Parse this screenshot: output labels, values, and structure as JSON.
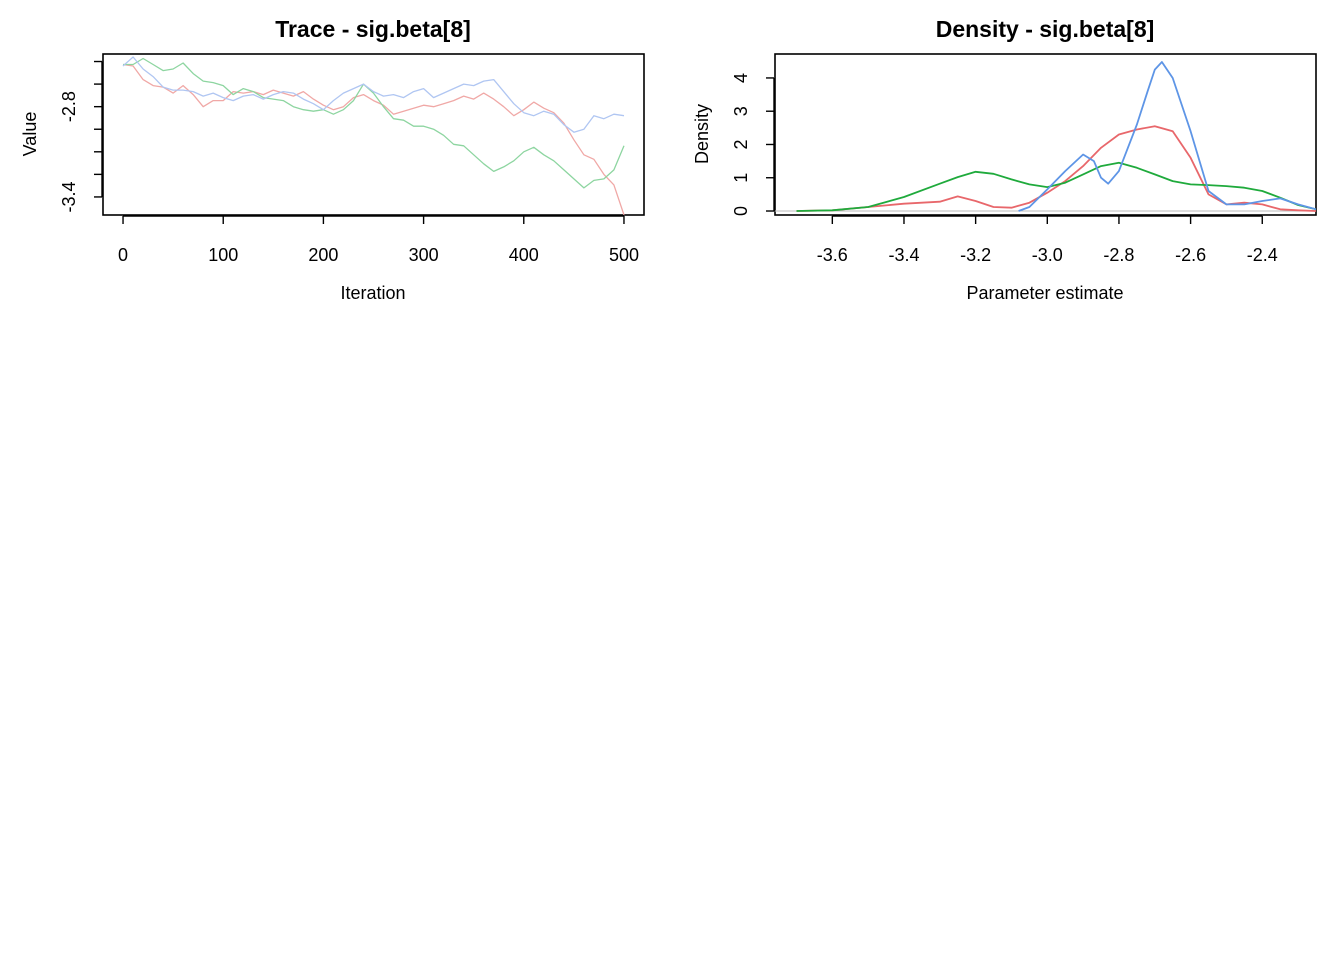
{
  "colors": {
    "chain1": "#E8676B",
    "chain2": "#1FAA3C",
    "chain3": "#5E95E6"
  },
  "chart_data": [
    {
      "type": "line",
      "title": "Trace - sig.beta[8]",
      "xlabel": "Iteration",
      "ylabel": "Value",
      "xlim": [
        -20,
        520
      ],
      "ylim": [
        -3.52,
        -2.45
      ],
      "xticks": [
        0,
        100,
        200,
        300,
        400,
        500
      ],
      "yticks": [
        -3.4,
        -3.25,
        -3.1,
        -2.95,
        -2.8,
        -2.65,
        -2.5
      ],
      "ytick_labels": {
        "-3.4": "-3.4",
        "-2.8": "-2.8"
      },
      "series": [
        {
          "color": "#F0A8A6",
          "values": [
            [
              0,
              -2.52
            ],
            [
              10,
              -2.53
            ],
            [
              20,
              -2.62
            ],
            [
              30,
              -2.66
            ],
            [
              40,
              -2.67
            ],
            [
              50,
              -2.71
            ],
            [
              60,
              -2.66
            ],
            [
              70,
              -2.72
            ],
            [
              80,
              -2.8
            ],
            [
              90,
              -2.76
            ],
            [
              100,
              -2.76
            ],
            [
              110,
              -2.7
            ],
            [
              120,
              -2.71
            ],
            [
              130,
              -2.7
            ],
            [
              140,
              -2.72
            ],
            [
              150,
              -2.69
            ],
            [
              160,
              -2.71
            ],
            [
              170,
              -2.73
            ],
            [
              180,
              -2.7
            ],
            [
              190,
              -2.75
            ],
            [
              200,
              -2.79
            ],
            [
              210,
              -2.82
            ],
            [
              220,
              -2.8
            ],
            [
              230,
              -2.74
            ],
            [
              240,
              -2.72
            ],
            [
              250,
              -2.76
            ],
            [
              260,
              -2.79
            ],
            [
              270,
              -2.85
            ],
            [
              280,
              -2.83
            ],
            [
              290,
              -2.81
            ],
            [
              300,
              -2.79
            ],
            [
              310,
              -2.8
            ],
            [
              320,
              -2.78
            ],
            [
              330,
              -2.76
            ],
            [
              340,
              -2.73
            ],
            [
              350,
              -2.75
            ],
            [
              360,
              -2.71
            ],
            [
              370,
              -2.75
            ],
            [
              380,
              -2.8
            ],
            [
              390,
              -2.86
            ],
            [
              400,
              -2.82
            ],
            [
              410,
              -2.77
            ],
            [
              420,
              -2.81
            ],
            [
              430,
              -2.84
            ],
            [
              440,
              -2.91
            ],
            [
              450,
              -3.02
            ],
            [
              460,
              -3.12
            ],
            [
              470,
              -3.15
            ],
            [
              480,
              -3.25
            ],
            [
              490,
              -3.32
            ],
            [
              500,
              -3.52
            ]
          ]
        },
        {
          "color": "#8DD5A0",
          "values": [
            [
              0,
              -2.52
            ],
            [
              10,
              -2.52
            ],
            [
              20,
              -2.48
            ],
            [
              30,
              -2.52
            ],
            [
              40,
              -2.56
            ],
            [
              50,
              -2.55
            ],
            [
              60,
              -2.51
            ],
            [
              70,
              -2.58
            ],
            [
              80,
              -2.63
            ],
            [
              90,
              -2.64
            ],
            [
              100,
              -2.66
            ],
            [
              110,
              -2.72
            ],
            [
              120,
              -2.68
            ],
            [
              130,
              -2.7
            ],
            [
              140,
              -2.74
            ],
            [
              150,
              -2.75
            ],
            [
              160,
              -2.76
            ],
            [
              170,
              -2.8
            ],
            [
              180,
              -2.82
            ],
            [
              190,
              -2.83
            ],
            [
              200,
              -2.82
            ],
            [
              210,
              -2.85
            ],
            [
              220,
              -2.82
            ],
            [
              230,
              -2.76
            ],
            [
              240,
              -2.65
            ],
            [
              250,
              -2.71
            ],
            [
              260,
              -2.8
            ],
            [
              270,
              -2.88
            ],
            [
              280,
              -2.89
            ],
            [
              290,
              -2.93
            ],
            [
              300,
              -2.93
            ],
            [
              310,
              -2.95
            ],
            [
              320,
              -2.99
            ],
            [
              330,
              -3.05
            ],
            [
              340,
              -3.06
            ],
            [
              350,
              -3.12
            ],
            [
              360,
              -3.18
            ],
            [
              370,
              -3.23
            ],
            [
              380,
              -3.2
            ],
            [
              390,
              -3.16
            ],
            [
              400,
              -3.1
            ],
            [
              410,
              -3.07
            ],
            [
              420,
              -3.12
            ],
            [
              430,
              -3.16
            ],
            [
              440,
              -3.22
            ],
            [
              450,
              -3.28
            ],
            [
              460,
              -3.34
            ],
            [
              470,
              -3.29
            ],
            [
              480,
              -3.28
            ],
            [
              490,
              -3.22
            ],
            [
              500,
              -3.06
            ]
          ]
        },
        {
          "color": "#B0C6F2",
          "values": [
            [
              0,
              -2.53
            ],
            [
              10,
              -2.47
            ],
            [
              20,
              -2.55
            ],
            [
              30,
              -2.6
            ],
            [
              40,
              -2.67
            ],
            [
              50,
              -2.69
            ],
            [
              60,
              -2.69
            ],
            [
              70,
              -2.7
            ],
            [
              80,
              -2.73
            ],
            [
              90,
              -2.71
            ],
            [
              100,
              -2.74
            ],
            [
              110,
              -2.76
            ],
            [
              120,
              -2.73
            ],
            [
              130,
              -2.72
            ],
            [
              140,
              -2.75
            ],
            [
              150,
              -2.72
            ],
            [
              160,
              -2.7
            ],
            [
              170,
              -2.71
            ],
            [
              180,
              -2.75
            ],
            [
              190,
              -2.78
            ],
            [
              200,
              -2.82
            ],
            [
              210,
              -2.76
            ],
            [
              220,
              -2.71
            ],
            [
              230,
              -2.68
            ],
            [
              240,
              -2.65
            ],
            [
              250,
              -2.7
            ],
            [
              260,
              -2.73
            ],
            [
              270,
              -2.72
            ],
            [
              280,
              -2.74
            ],
            [
              290,
              -2.7
            ],
            [
              300,
              -2.68
            ],
            [
              310,
              -2.74
            ],
            [
              320,
              -2.71
            ],
            [
              330,
              -2.68
            ],
            [
              340,
              -2.65
            ],
            [
              350,
              -2.66
            ],
            [
              360,
              -2.63
            ],
            [
              370,
              -2.62
            ],
            [
              380,
              -2.7
            ],
            [
              390,
              -2.78
            ],
            [
              400,
              -2.84
            ],
            [
              410,
              -2.86
            ],
            [
              420,
              -2.83
            ],
            [
              430,
              -2.85
            ],
            [
              440,
              -2.92
            ],
            [
              450,
              -2.97
            ],
            [
              460,
              -2.95
            ],
            [
              470,
              -2.86
            ],
            [
              480,
              -2.88
            ],
            [
              490,
              -2.85
            ],
            [
              500,
              -2.86
            ]
          ]
        }
      ]
    },
    {
      "type": "line",
      "title": "Density - sig.beta[8]",
      "xlabel": "Parameter estimate",
      "ylabel": "Density",
      "xlim": [
        -3.76,
        -2.25
      ],
      "ylim": [
        -0.12,
        4.72
      ],
      "xticks": [
        -3.6,
        -3.4,
        -3.2,
        -3.0,
        -2.8,
        -2.6,
        -2.4
      ],
      "xtick_labels": [
        "-3.6",
        "-3.4",
        "-3.2",
        "-3.0",
        "-2.8",
        "-2.6",
        "-2.4"
      ],
      "yticks": [
        0,
        1,
        2,
        3,
        4
      ],
      "ytick_labels": [
        "0",
        "1",
        "2",
        "3",
        "4"
      ],
      "series": [
        {
          "color": "#E8676B",
          "values": [
            [
              -3.7,
              0
            ],
            [
              -3.6,
              0.02
            ],
            [
              -3.5,
              0.12
            ],
            [
              -3.4,
              0.22
            ],
            [
              -3.3,
              0.28
            ],
            [
              -3.25,
              0.44
            ],
            [
              -3.2,
              0.3
            ],
            [
              -3.15,
              0.12
            ],
            [
              -3.1,
              0.1
            ],
            [
              -3.05,
              0.25
            ],
            [
              -3.0,
              0.55
            ],
            [
              -2.95,
              0.9
            ],
            [
              -2.9,
              1.35
            ],
            [
              -2.85,
              1.9
            ],
            [
              -2.8,
              2.3
            ],
            [
              -2.75,
              2.45
            ],
            [
              -2.7,
              2.55
            ],
            [
              -2.65,
              2.4
            ],
            [
              -2.6,
              1.6
            ],
            [
              -2.55,
              0.5
            ],
            [
              -2.5,
              0.2
            ],
            [
              -2.45,
              0.25
            ],
            [
              -2.4,
              0.2
            ],
            [
              -2.35,
              0.05
            ],
            [
              -2.3,
              0.02
            ],
            [
              -2.25,
              0
            ]
          ]
        },
        {
          "color": "#1FAA3C",
          "values": [
            [
              -3.7,
              0
            ],
            [
              -3.6,
              0.02
            ],
            [
              -3.5,
              0.12
            ],
            [
              -3.4,
              0.42
            ],
            [
              -3.3,
              0.82
            ],
            [
              -3.25,
              1.02
            ],
            [
              -3.2,
              1.18
            ],
            [
              -3.15,
              1.12
            ],
            [
              -3.1,
              0.95
            ],
            [
              -3.05,
              0.8
            ],
            [
              -3.0,
              0.72
            ],
            [
              -2.95,
              0.85
            ],
            [
              -2.9,
              1.1
            ],
            [
              -2.85,
              1.35
            ],
            [
              -2.8,
              1.45
            ],
            [
              -2.75,
              1.3
            ],
            [
              -2.7,
              1.1
            ],
            [
              -2.65,
              0.9
            ],
            [
              -2.6,
              0.8
            ],
            [
              -2.55,
              0.78
            ],
            [
              -2.5,
              0.75
            ],
            [
              -2.45,
              0.7
            ],
            [
              -2.4,
              0.6
            ],
            [
              -2.35,
              0.4
            ],
            [
              -2.3,
              0.18
            ],
            [
              -2.25,
              0.05
            ]
          ]
        },
        {
          "color": "#5E95E6",
          "values": [
            [
              -3.08,
              0
            ],
            [
              -3.05,
              0.12
            ],
            [
              -3.0,
              0.65
            ],
            [
              -2.95,
              1.2
            ],
            [
              -2.9,
              1.7
            ],
            [
              -2.87,
              1.5
            ],
            [
              -2.85,
              1.0
            ],
            [
              -2.83,
              0.82
            ],
            [
              -2.8,
              1.2
            ],
            [
              -2.75,
              2.6
            ],
            [
              -2.72,
              3.6
            ],
            [
              -2.7,
              4.25
            ],
            [
              -2.68,
              4.48
            ],
            [
              -2.65,
              4.0
            ],
            [
              -2.6,
              2.4
            ],
            [
              -2.55,
              0.6
            ],
            [
              -2.5,
              0.2
            ],
            [
              -2.45,
              0.2
            ],
            [
              -2.4,
              0.3
            ],
            [
              -2.35,
              0.38
            ],
            [
              -2.3,
              0.2
            ],
            [
              -2.25,
              0.05
            ]
          ]
        }
      ]
    }
  ]
}
